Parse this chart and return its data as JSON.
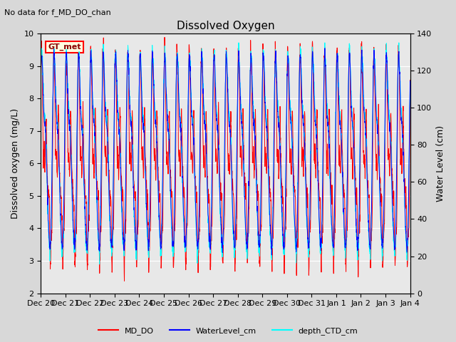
{
  "title": "Dissolved Oxygen",
  "top_note": "No data for f_MD_DO_chan",
  "annotation_text": "GT_met",
  "ylabel_left": "Dissolved oxygen (mg/L)",
  "ylabel_right": "Water Level (cm)",
  "ylim_left": [
    2.0,
    10.0
  ],
  "ylim_right": [
    0,
    140
  ],
  "xtick_labels": [
    "Dec 20",
    "Dec 21",
    "Dec 22",
    "Dec 23",
    "Dec 24",
    "Dec 25",
    "Dec 26",
    "Dec 27",
    "Dec 28",
    "Dec 29",
    "Dec 30",
    "Dec 31",
    "Jan 1",
    "Jan 2",
    "Jan 3",
    "Jan 4"
  ],
  "legend_labels": [
    "MD_DO",
    "WaterLevel_cm",
    "depth_CTD_cm"
  ],
  "bg_color": "#d8d8d8",
  "plot_bg_color": "#e8e8e8",
  "md_do_color": "red",
  "water_level_color": "blue",
  "depth_ctd_color": "cyan",
  "annotation_bg": "lightyellow",
  "annotation_border": "red",
  "title_fontsize": 11,
  "label_fontsize": 9,
  "tick_fontsize": 8,
  "note_fontsize": 8,
  "legend_fontsize": 8
}
